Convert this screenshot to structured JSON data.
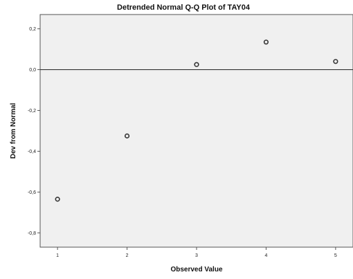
{
  "chart_data": {
    "type": "scatter",
    "title": "Detrended Normal Q-Q Plot of TAY04",
    "xlabel": "Observed Value",
    "ylabel": "Dev from Normal",
    "x_ticks": [
      1,
      2,
      3,
      4,
      5
    ],
    "x_tick_labels": [
      "1",
      "2",
      "3",
      "4",
      "5"
    ],
    "y_ticks": [
      0.2,
      0.0,
      -0.2,
      -0.4,
      -0.6,
      -0.8
    ],
    "y_tick_labels": [
      "0,2",
      "0,0",
      "-0,2",
      "-0,4",
      "-0,6",
      "-0,8"
    ],
    "xlim": [
      0.75,
      5.25
    ],
    "ylim": [
      -0.87,
      0.27
    ],
    "reference_line_y": 0.0,
    "points": [
      {
        "x": 1,
        "y": -0.635
      },
      {
        "x": 2,
        "y": -0.325
      },
      {
        "x": 3,
        "y": 0.025
      },
      {
        "x": 4,
        "y": 0.135
      },
      {
        "x": 5,
        "y": 0.04
      }
    ],
    "grid": false,
    "plot_background": "#f0f0f0",
    "marker_color": "#333333"
  }
}
